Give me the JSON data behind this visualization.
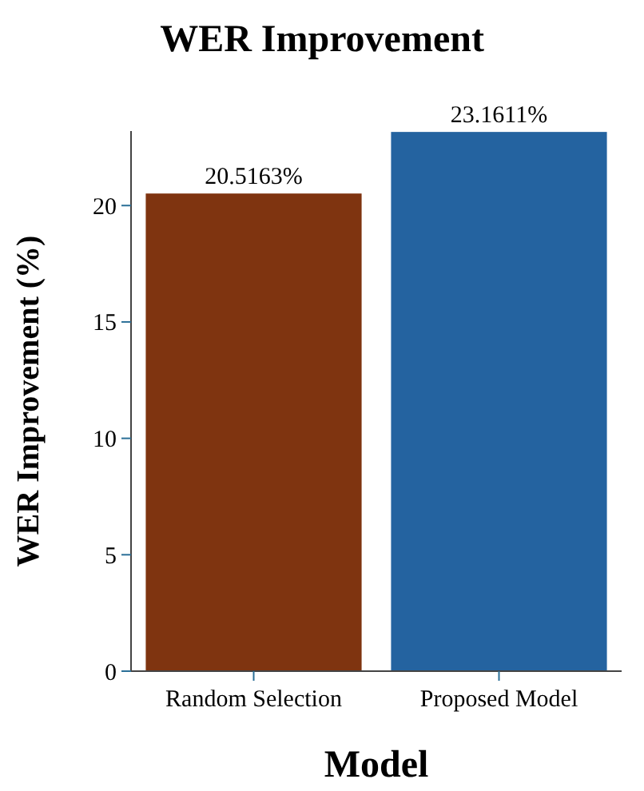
{
  "chart_data": {
    "type": "bar",
    "title": "WER Improvement",
    "xlabel": "Model",
    "ylabel": "WER Improvement (%)",
    "categories": [
      "Random Selection",
      "Proposed Model"
    ],
    "values": [
      20.5163,
      23.1611
    ],
    "colors": [
      "#7f3410",
      "#2463a0"
    ],
    "value_labels": [
      "20.5163%",
      "23.1611%"
    ],
    "ylim": [
      0,
      23.2
    ],
    "yticks": [
      0,
      5,
      10,
      15,
      20
    ],
    "grid": false
  }
}
